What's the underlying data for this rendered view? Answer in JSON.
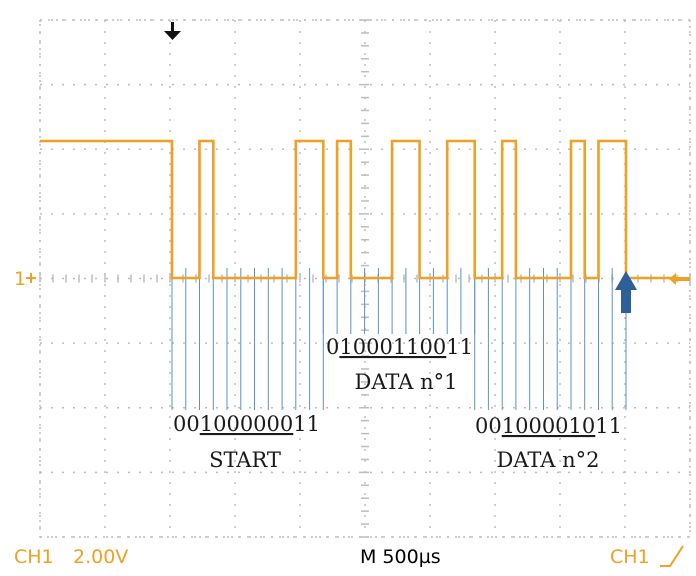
{
  "colors": {
    "trace": "#f0a023",
    "grid": "#bdbdbd",
    "bitline": "#5a93c7",
    "arrow": "#2f5f9a",
    "text": "#1a1a1a",
    "hud_text": "#000000",
    "status_accent": "#f0a023"
  },
  "status": {
    "channel": "CH1",
    "volts_div": "2.00V",
    "timebase": "M 500µs",
    "trigger": "CH1",
    "trigger_slope_icon": "rising-edge-icon"
  },
  "markers": {
    "channel_ref": "1",
    "ref_arrow_icon": "plus-icon",
    "trigger_pos_icon": "down-arrow-icon",
    "trigger_level_icon": "left-arrow-icon",
    "end_arrow_icon": "up-arrow-icon"
  },
  "frames": [
    {
      "bits": "00100000011",
      "label": "START",
      "underline_from": 2,
      "underline_to": 9
    },
    {
      "bits": "01000110011",
      "label": "DATA n°1",
      "underline_from": 1,
      "underline_to": 9
    },
    {
      "bits": "00100001011",
      "label": "DATA n°2",
      "underline_from": 2,
      "underline_to": 9
    }
  ],
  "waveform": {
    "idle_level": "high",
    "bit_sequence": "001000000110100011001100100001011"
  }
}
